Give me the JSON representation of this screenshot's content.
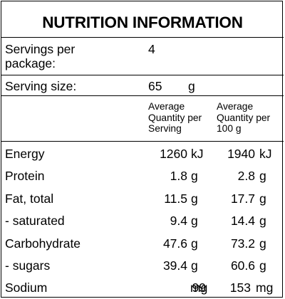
{
  "title": "NUTRITION INFORMATION",
  "servings_per_package": {
    "label_line1": "Servings per",
    "label_line2": "package:",
    "value": "4"
  },
  "serving_size": {
    "label": "Serving size:",
    "value": "65",
    "unit": "g"
  },
  "column_headers": {
    "per_serving": [
      "Average",
      "Quantity per",
      "Serving"
    ],
    "per_100g": [
      "Average",
      "Quantity per",
      "100 g"
    ]
  },
  "rows": [
    {
      "label": "Energy",
      "serving_value": "1260",
      "serving_unit": "kJ",
      "per100_value": "1940",
      "per100_unit": "kJ"
    },
    {
      "label": "Protein",
      "serving_value": "1.8",
      "serving_unit": "g",
      "per100_value": "2.8",
      "per100_unit": "g"
    },
    {
      "label": "Fat, total",
      "serving_value": "11.5",
      "serving_unit": "g",
      "per100_value": "17.7",
      "per100_unit": "g"
    },
    {
      "label": "- saturated",
      "serving_value": "9.4",
      "serving_unit": "g",
      "per100_value": "14.4",
      "per100_unit": "g"
    },
    {
      "label": "Carbohydrate",
      "serving_value": "47.6",
      "serving_unit": "g",
      "per100_value": "73.2",
      "per100_unit": "g"
    },
    {
      "label": "- sugars",
      "serving_value": "39.4",
      "serving_unit": "g",
      "per100_value": "60.6",
      "per100_unit": "g"
    },
    {
      "label": "Sodium",
      "serving_value": "99",
      "serving_unit": "mg",
      "per100_value": "153",
      "per100_unit": "mg"
    }
  ]
}
